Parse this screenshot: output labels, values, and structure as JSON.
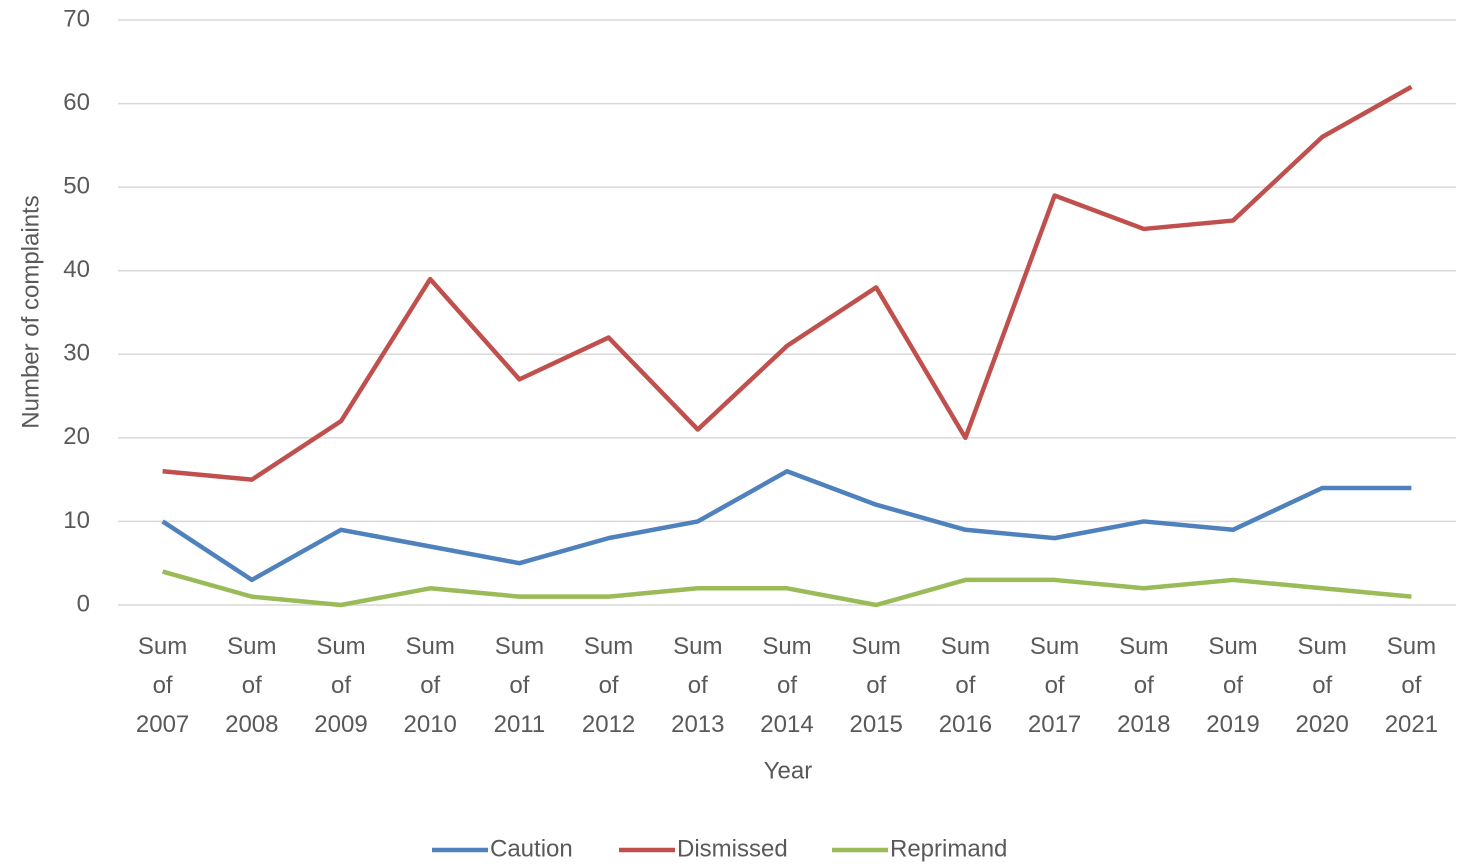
{
  "chart_data": {
    "type": "line",
    "x_label": "Year",
    "y_label": "Number of complaints",
    "categories": [
      "Sum of 2007",
      "Sum of 2008",
      "Sum of 2009",
      "Sum of 2010",
      "Sum of 2011",
      "Sum of 2012",
      "Sum of 2013",
      "Sum of 2014",
      "Sum of 2015",
      "Sum of 2016",
      "Sum of 2017",
      "Sum of 2018",
      "Sum of 2019",
      "Sum of 2020",
      "Sum of 2021"
    ],
    "series": [
      {
        "name": "Caution",
        "color": "#4f81bd",
        "values": [
          10,
          3,
          9,
          7,
          5,
          8,
          10,
          16,
          12,
          9,
          8,
          10,
          9,
          14,
          14
        ]
      },
      {
        "name": "Dismissed",
        "color": "#c0504d",
        "values": [
          16,
          15,
          22,
          39,
          27,
          32,
          21,
          31,
          38,
          20,
          49,
          45,
          46,
          56,
          62
        ]
      },
      {
        "name": "Reprimand",
        "color": "#9bbb59",
        "values": [
          4,
          1,
          0,
          2,
          1,
          1,
          2,
          2,
          0,
          3,
          3,
          2,
          3,
          2,
          1
        ]
      }
    ],
    "ylim": [
      0,
      70
    ],
    "yticks": [
      0,
      10,
      20,
      30,
      40,
      50,
      60,
      70
    ],
    "grid": true,
    "legend": "bottom"
  }
}
